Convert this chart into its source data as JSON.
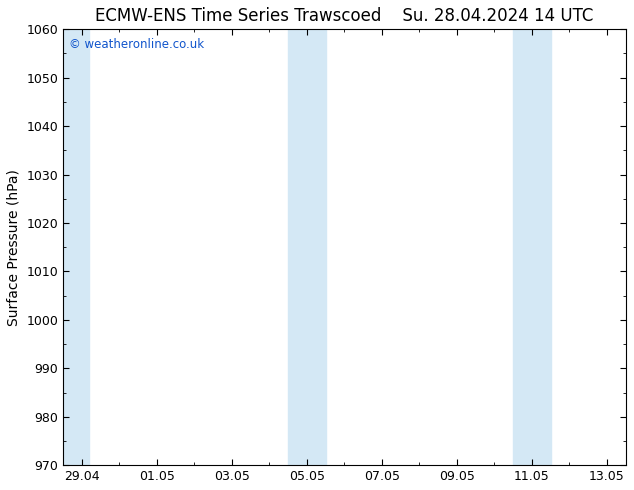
{
  "title_left": "ECMW-ENS Time Series Trawscoed",
  "title_right": "Su. 28.04.2024 14 UTC",
  "ylabel": "Surface Pressure (hPa)",
  "ylim": [
    970,
    1060
  ],
  "yticks": [
    970,
    980,
    990,
    1000,
    1010,
    1020,
    1030,
    1040,
    1050,
    1060
  ],
  "x_tick_labels": [
    "29.04",
    "01.05",
    "03.05",
    "05.05",
    "07.05",
    "09.05",
    "11.05",
    "13.05"
  ],
  "x_tick_positions": [
    0,
    2,
    4,
    6,
    8,
    10,
    12,
    14
  ],
  "xlim": [
    -0.5,
    14.5
  ],
  "shaded_bands": [
    {
      "x_start": -0.5,
      "x_end": 0.2
    },
    {
      "x_start": 5.5,
      "x_end": 6.5
    },
    {
      "x_start": 11.5,
      "x_end": 12.5
    }
  ],
  "band_color": "#d4e8f5",
  "plot_bg": "#ffffff",
  "fig_bg": "#ffffff",
  "watermark": "© weatheronline.co.uk",
  "watermark_color": "#1155cc",
  "title_fontsize": 12,
  "label_fontsize": 10,
  "tick_fontsize": 9
}
